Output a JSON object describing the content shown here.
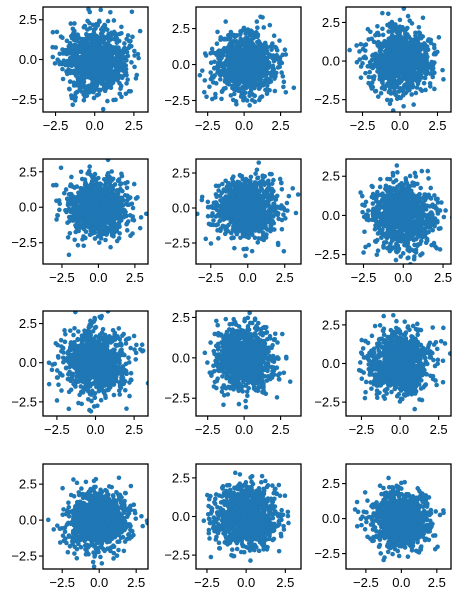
{
  "chart_data": [
    {
      "type": "scatter",
      "xlim": [
        -3.3,
        3.4
      ],
      "ylim": [
        -3.3,
        3.3
      ],
      "xticks": [
        -2.5,
        0.0,
        2.5
      ],
      "yticks": [
        -2.5,
        0.0,
        2.5
      ],
      "xtick_labels": [
        "−2.5",
        "0.0",
        "2.5"
      ],
      "ytick_labels": [
        "−2.5",
        "0.0",
        "2.5"
      ],
      "seed": 11,
      "points": 1000
    },
    {
      "type": "scatter",
      "xlim": [
        -3.3,
        3.9
      ],
      "ylim": [
        -3.3,
        4.0
      ],
      "xticks": [
        -2.5,
        0.0,
        2.5
      ],
      "yticks": [
        -2.5,
        0.0,
        2.5
      ],
      "xtick_labels": [
        "−2.5",
        "0.0",
        "2.5"
      ],
      "ytick_labels": [
        "−2.5",
        "0.0",
        "2.5"
      ],
      "seed": 23,
      "points": 1000
    },
    {
      "type": "scatter",
      "xlim": [
        -3.6,
        3.4
      ],
      "ylim": [
        -3.3,
        3.5
      ],
      "xticks": [
        -2.5,
        0.0,
        2.5
      ],
      "yticks": [
        -2.5,
        0.0,
        2.5
      ],
      "xtick_labels": [
        "−2.5",
        "0.0",
        "2.5"
      ],
      "ytick_labels": [
        "−2.5",
        "0.0",
        "2.5"
      ],
      "seed": 37,
      "points": 1000
    },
    {
      "type": "scatter",
      "xlim": [
        -3.8,
        3.4
      ],
      "ylim": [
        -4.0,
        3.4
      ],
      "xticks": [
        -2.5,
        0.0,
        2.5
      ],
      "yticks": [
        -2.5,
        0.0,
        2.5
      ],
      "xtick_labels": [
        "−2.5",
        "0.0",
        "2.5"
      ],
      "ytick_labels": [
        "−2.5",
        "0.0",
        "2.5"
      ],
      "seed": 41,
      "points": 1000
    },
    {
      "type": "scatter",
      "xlim": [
        -3.5,
        3.6
      ],
      "ylim": [
        -4.0,
        3.5
      ],
      "xticks": [
        -2.5,
        0.0,
        2.5
      ],
      "yticks": [
        -2.5,
        0.0,
        2.5
      ],
      "xtick_labels": [
        "−2.5",
        "0.0",
        "2.5"
      ],
      "ytick_labels": [
        "−2.5",
        "0.0",
        "2.5"
      ],
      "seed": 53,
      "points": 1000
    },
    {
      "type": "scatter",
      "xlim": [
        -3.6,
        3.0
      ],
      "ylim": [
        -3.1,
        3.6
      ],
      "xticks": [
        -2.5,
        0.0,
        2.5
      ],
      "yticks": [
        -2.5,
        0.0,
        2.5
      ],
      "xtick_labels": [
        "−2.5",
        "0.0",
        "2.5"
      ],
      "ytick_labels": [
        "−2.5",
        "0.0",
        "2.5"
      ],
      "seed": 67,
      "points": 1000
    },
    {
      "type": "scatter",
      "xlim": [
        -3.4,
        3.4
      ],
      "ylim": [
        -3.4,
        3.3
      ],
      "xticks": [
        -2.5,
        0.0,
        2.5
      ],
      "yticks": [
        -2.5,
        0.0,
        2.5
      ],
      "xtick_labels": [
        "−2.5",
        "0.0",
        "2.5"
      ],
      "ytick_labels": [
        "−2.5",
        "0.0",
        "2.5"
      ],
      "seed": 71,
      "points": 1000
    },
    {
      "type": "scatter",
      "xlim": [
        -3.3,
        3.9
      ],
      "ylim": [
        -3.6,
        2.9
      ],
      "xticks": [
        -2.5,
        0.0,
        2.5
      ],
      "yticks": [
        -2.5,
        0.0,
        2.5
      ],
      "xtick_labels": [
        "−2.5",
        "0.0",
        "2.5"
      ],
      "ytick_labels": [
        "−2.5",
        "0.0",
        "2.5"
      ],
      "seed": 83,
      "points": 1000
    },
    {
      "type": "scatter",
      "xlim": [
        -3.5,
        3.3
      ],
      "ylim": [
        -3.4,
        3.4
      ],
      "xticks": [
        -2.5,
        0.0,
        2.5
      ],
      "yticks": [
        -2.5,
        0.0,
        2.5
      ],
      "xtick_labels": [
        "−2.5",
        "0.0",
        "2.5"
      ],
      "ytick_labels": [
        "−2.5",
        "0.0",
        "2.5"
      ],
      "seed": 97,
      "points": 1000
    },
    {
      "type": "scatter",
      "xlim": [
        -3.8,
        3.3
      ],
      "ylim": [
        -3.4,
        3.9
      ],
      "xticks": [
        -2.5,
        0.0,
        2.5
      ],
      "yticks": [
        -2.5,
        0.0,
        2.5
      ],
      "xtick_labels": [
        "−2.5",
        "0.0",
        "2.5"
      ],
      "ytick_labels": [
        "−2.5",
        "0.0",
        "2.5"
      ],
      "seed": 101,
      "points": 1000
    },
    {
      "type": "scatter",
      "xlim": [
        -3.2,
        3.5
      ],
      "ylim": [
        -3.4,
        3.4
      ],
      "xticks": [
        -2.5,
        0.0,
        2.5
      ],
      "yticks": [
        -2.5,
        0.0,
        2.5
      ],
      "xtick_labels": [
        "−2.5",
        "0.0",
        "2.5"
      ],
      "ytick_labels": [
        "−2.5",
        "0.0",
        "2.5"
      ],
      "seed": 113,
      "points": 1000
    },
    {
      "type": "scatter",
      "xlim": [
        -3.9,
        3.5
      ],
      "ylim": [
        -3.6,
        3.9
      ],
      "xticks": [
        -2.5,
        0.0,
        2.5
      ],
      "yticks": [
        -2.5,
        0.0,
        2.5
      ],
      "xtick_labels": [
        "−2.5",
        "0.0",
        "2.5"
      ],
      "ytick_labels": [
        "−2.5",
        "0.0",
        "2.5"
      ],
      "seed": 127,
      "points": 1000
    }
  ],
  "style": {
    "point_color": "#1f77b4"
  }
}
